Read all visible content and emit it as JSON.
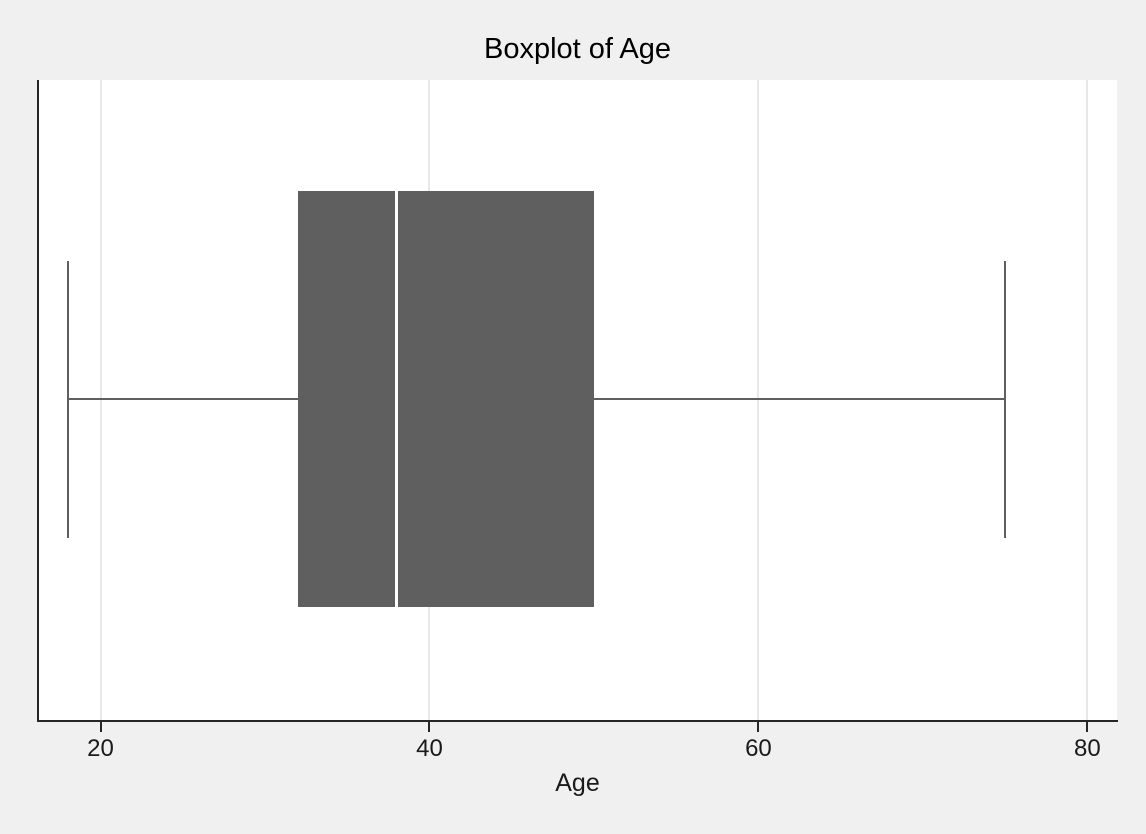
{
  "title": "Boxplot of Age",
  "chart_data": {
    "type": "boxplot",
    "orientation": "horizontal",
    "title": "Boxplot of Age",
    "xlabel": "Age",
    "ylabel": "",
    "x_ticks": [
      20,
      40,
      60,
      80
    ],
    "xlim": [
      16.2,
      81.8
    ],
    "grid": "vertical major gridlines only",
    "legend": "none",
    "series": [
      {
        "name": "Age",
        "whisker_min": 18,
        "q1": 32,
        "median": 38,
        "q3": 50,
        "whisker_max": 75,
        "outliers": []
      }
    ]
  },
  "colors": {
    "outer_background": "#f0f0f0",
    "plot_background": "#ffffff",
    "gridline": "#e8e8e8",
    "box_fill": "#5f5f5f",
    "median_line": "#ffffff",
    "whisker": "#5f5f5f",
    "axis_line": "#262626",
    "text": "#1a1a1a"
  }
}
